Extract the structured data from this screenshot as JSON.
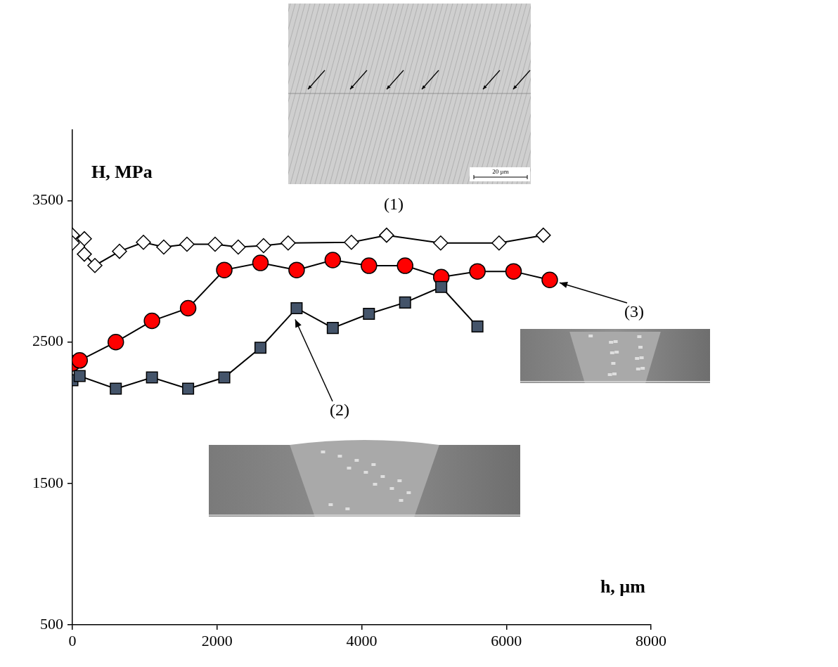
{
  "chart_data": {
    "type": "line",
    "x_label": "h, µm",
    "y_label": "H, MPa",
    "xlim": [
      0,
      8000
    ],
    "xticks": [
      0,
      2000,
      4000,
      6000,
      8000
    ],
    "ylim": [
      500,
      4000
    ],
    "yticks": [
      500,
      1500,
      2500,
      3500
    ],
    "grid": false,
    "scale_bar_label": "20 µm",
    "series": [
      {
        "name": "(1)",
        "color": "#ffffff",
        "marker": "diamond",
        "line_style": "solid",
        "x": [
          0,
          0,
          165,
          165,
          311,
          651,
          982,
          1263,
          1584,
          1973,
          2293,
          2643,
          2983,
          3858,
          4344,
          5092,
          5899,
          6511
        ],
        "values": [
          3256,
          3201,
          3231,
          3122,
          3042,
          3142,
          3206,
          3172,
          3192,
          3192,
          3172,
          3182,
          3201,
          3206,
          3256,
          3201,
          3201,
          3256
        ]
      },
      {
        "name": "(2)",
        "color": "#44546a",
        "marker": "square",
        "line_style": "solid",
        "x": [
          0,
          100,
          600,
          1100,
          1600,
          2100,
          2600,
          3100,
          3600,
          4100,
          4600,
          5100,
          5600
        ],
        "values": [
          2230,
          2260,
          2170,
          2250,
          2170,
          2250,
          2460,
          2740,
          2600,
          2700,
          2780,
          2890,
          2610
        ]
      },
      {
        "name": "(3)",
        "color": "#ff0000",
        "marker": "circle",
        "line_style": "solid",
        "x": [
          0,
          100,
          600,
          1100,
          1600,
          2100,
          2600,
          3100,
          3600,
          4100,
          4600,
          5100,
          5600,
          6100,
          6600
        ],
        "values": [
          2350,
          2370,
          2500,
          2650,
          2740,
          3010,
          3060,
          3010,
          3080,
          3040,
          3040,
          2960,
          3000,
          3000,
          2940
        ]
      }
    ]
  }
}
